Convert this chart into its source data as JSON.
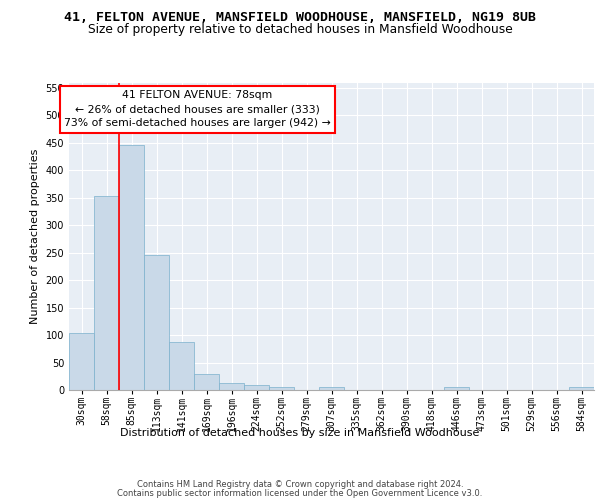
{
  "title_line1": "41, FELTON AVENUE, MANSFIELD WOODHOUSE, MANSFIELD, NG19 8UB",
  "title_line2": "Size of property relative to detached houses in Mansfield Woodhouse",
  "xlabel": "Distribution of detached houses by size in Mansfield Woodhouse",
  "ylabel": "Number of detached properties",
  "footer_line1": "Contains HM Land Registry data © Crown copyright and database right 2024.",
  "footer_line2": "Contains public sector information licensed under the Open Government Licence v3.0.",
  "bins": [
    "30sqm",
    "58sqm",
    "85sqm",
    "113sqm",
    "141sqm",
    "169sqm",
    "196sqm",
    "224sqm",
    "252sqm",
    "279sqm",
    "307sqm",
    "335sqm",
    "362sqm",
    "390sqm",
    "418sqm",
    "446sqm",
    "473sqm",
    "501sqm",
    "529sqm",
    "556sqm",
    "584sqm"
  ],
  "bar_values": [
    103,
    353,
    447,
    245,
    87,
    30,
    13,
    9,
    5,
    0,
    5,
    0,
    0,
    0,
    0,
    5,
    0,
    0,
    0,
    0,
    5
  ],
  "bar_color": "#c9d9e8",
  "bar_edge_color": "#7ab0cc",
  "annotation_text_line1": "41 FELTON AVENUE: 78sqm",
  "annotation_text_line2": "← 26% of detached houses are smaller (333)",
  "annotation_text_line3": "73% of semi-detached houses are larger (942) →",
  "vline_color": "red",
  "vline_x": 1.5,
  "ylim_max": 560,
  "yticks": [
    0,
    50,
    100,
    150,
    200,
    250,
    300,
    350,
    400,
    450,
    500,
    550
  ],
  "background_color": "#e8eef5",
  "grid_color": "white",
  "title_fontsize": 9.5,
  "subtitle_fontsize": 8.8,
  "axis_label_fontsize": 8,
  "tick_fontsize": 7,
  "footer_fontsize": 6.0,
  "annotation_fontsize": 7.8
}
